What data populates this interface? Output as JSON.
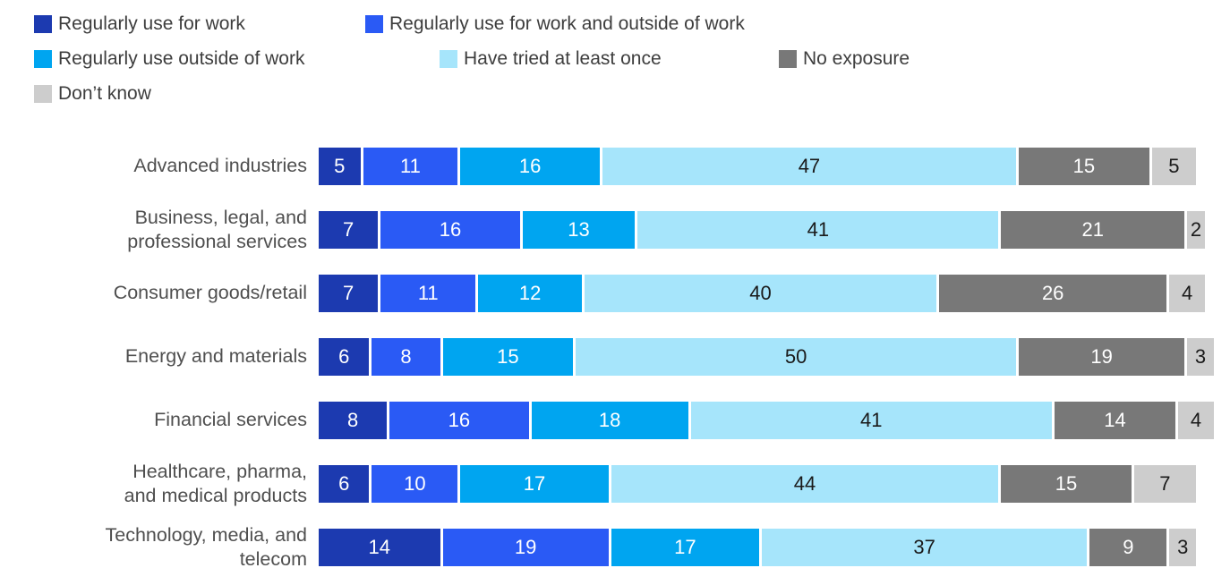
{
  "chart_data": {
    "type": "bar",
    "variant": "horizontal_stacked",
    "unit": "percent",
    "xlim": [
      0,
      100
    ],
    "axes_hidden": true,
    "grid": false,
    "legend_position": "top-left",
    "categories": [
      "Advanced industries",
      "Business, legal, and\nprofessional services",
      "Consumer goods/retail",
      "Energy and materials",
      "Financial services",
      "Healthcare, pharma,\nand medical products",
      "Technology, media, and\ntelecom"
    ],
    "series": [
      {
        "name": "Regularly use for work",
        "color": "#1c3ab0",
        "label_color": "#ffffff",
        "values": [
          5,
          7,
          7,
          6,
          8,
          6,
          14
        ]
      },
      {
        "name": "Regularly use for work and outside of work",
        "color": "#2a5af5",
        "label_color": "#ffffff",
        "values": [
          11,
          16,
          11,
          8,
          16,
          10,
          19
        ]
      },
      {
        "name": "Regularly use outside of work",
        "color": "#00a5f0",
        "label_color": "#ffffff",
        "values": [
          16,
          13,
          12,
          15,
          18,
          17,
          17
        ]
      },
      {
        "name": "Have tried at least once",
        "color": "#a6e5fb",
        "label_color": "#1a1a1a",
        "values": [
          47,
          41,
          40,
          50,
          41,
          44,
          37
        ]
      },
      {
        "name": "No exposure",
        "color": "#787878",
        "label_color": "#ffffff",
        "values": [
          15,
          21,
          26,
          19,
          14,
          15,
          9
        ]
      },
      {
        "name": "Don’t know",
        "color": "#cdcdcd",
        "label_color": "#1a1a1a",
        "values": [
          5,
          2,
          4,
          3,
          4,
          7,
          3
        ]
      }
    ]
  }
}
